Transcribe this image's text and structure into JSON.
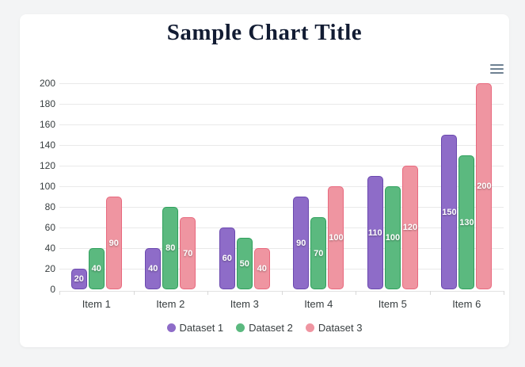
{
  "page": {
    "background_color": "#f3f4f5",
    "card_color": "#ffffff"
  },
  "header": {
    "title": "Sample Chart Title",
    "title_color": "#121c33"
  },
  "toolbar": {
    "menu_icon": "hamburger-menu-icon",
    "icon_color": "#6e8192"
  },
  "chart_data": {
    "type": "bar",
    "title": "Sample Chart Title",
    "categories": [
      "Item 1",
      "Item 2",
      "Item 3",
      "Item 4",
      "Item 5",
      "Item 6"
    ],
    "series": [
      {
        "name": "Dataset 1",
        "values": [
          20,
          40,
          60,
          90,
          110,
          150
        ],
        "fill": "#8e6cc8",
        "border": "#6a48ae"
      },
      {
        "name": "Dataset 2",
        "values": [
          40,
          80,
          50,
          70,
          100,
          130
        ],
        "fill": "#5bb97f",
        "border": "#2fa05c"
      },
      {
        "name": "Dataset 3",
        "values": [
          90,
          70,
          40,
          100,
          120,
          200
        ],
        "fill": "#ef95a1",
        "border": "#e8697e"
      }
    ],
    "xlabel": "",
    "ylabel": "",
    "ylim": [
      0,
      200
    ],
    "ytick_step": 20,
    "yticks": [
      0,
      20,
      40,
      60,
      80,
      100,
      120,
      140,
      160,
      180,
      200
    ],
    "grid": true,
    "grid_color": "#e9e9e9",
    "axis_text_color": "#373d3f",
    "data_labels": true,
    "data_label_color": "#ffffff",
    "legend_position": "bottom"
  }
}
